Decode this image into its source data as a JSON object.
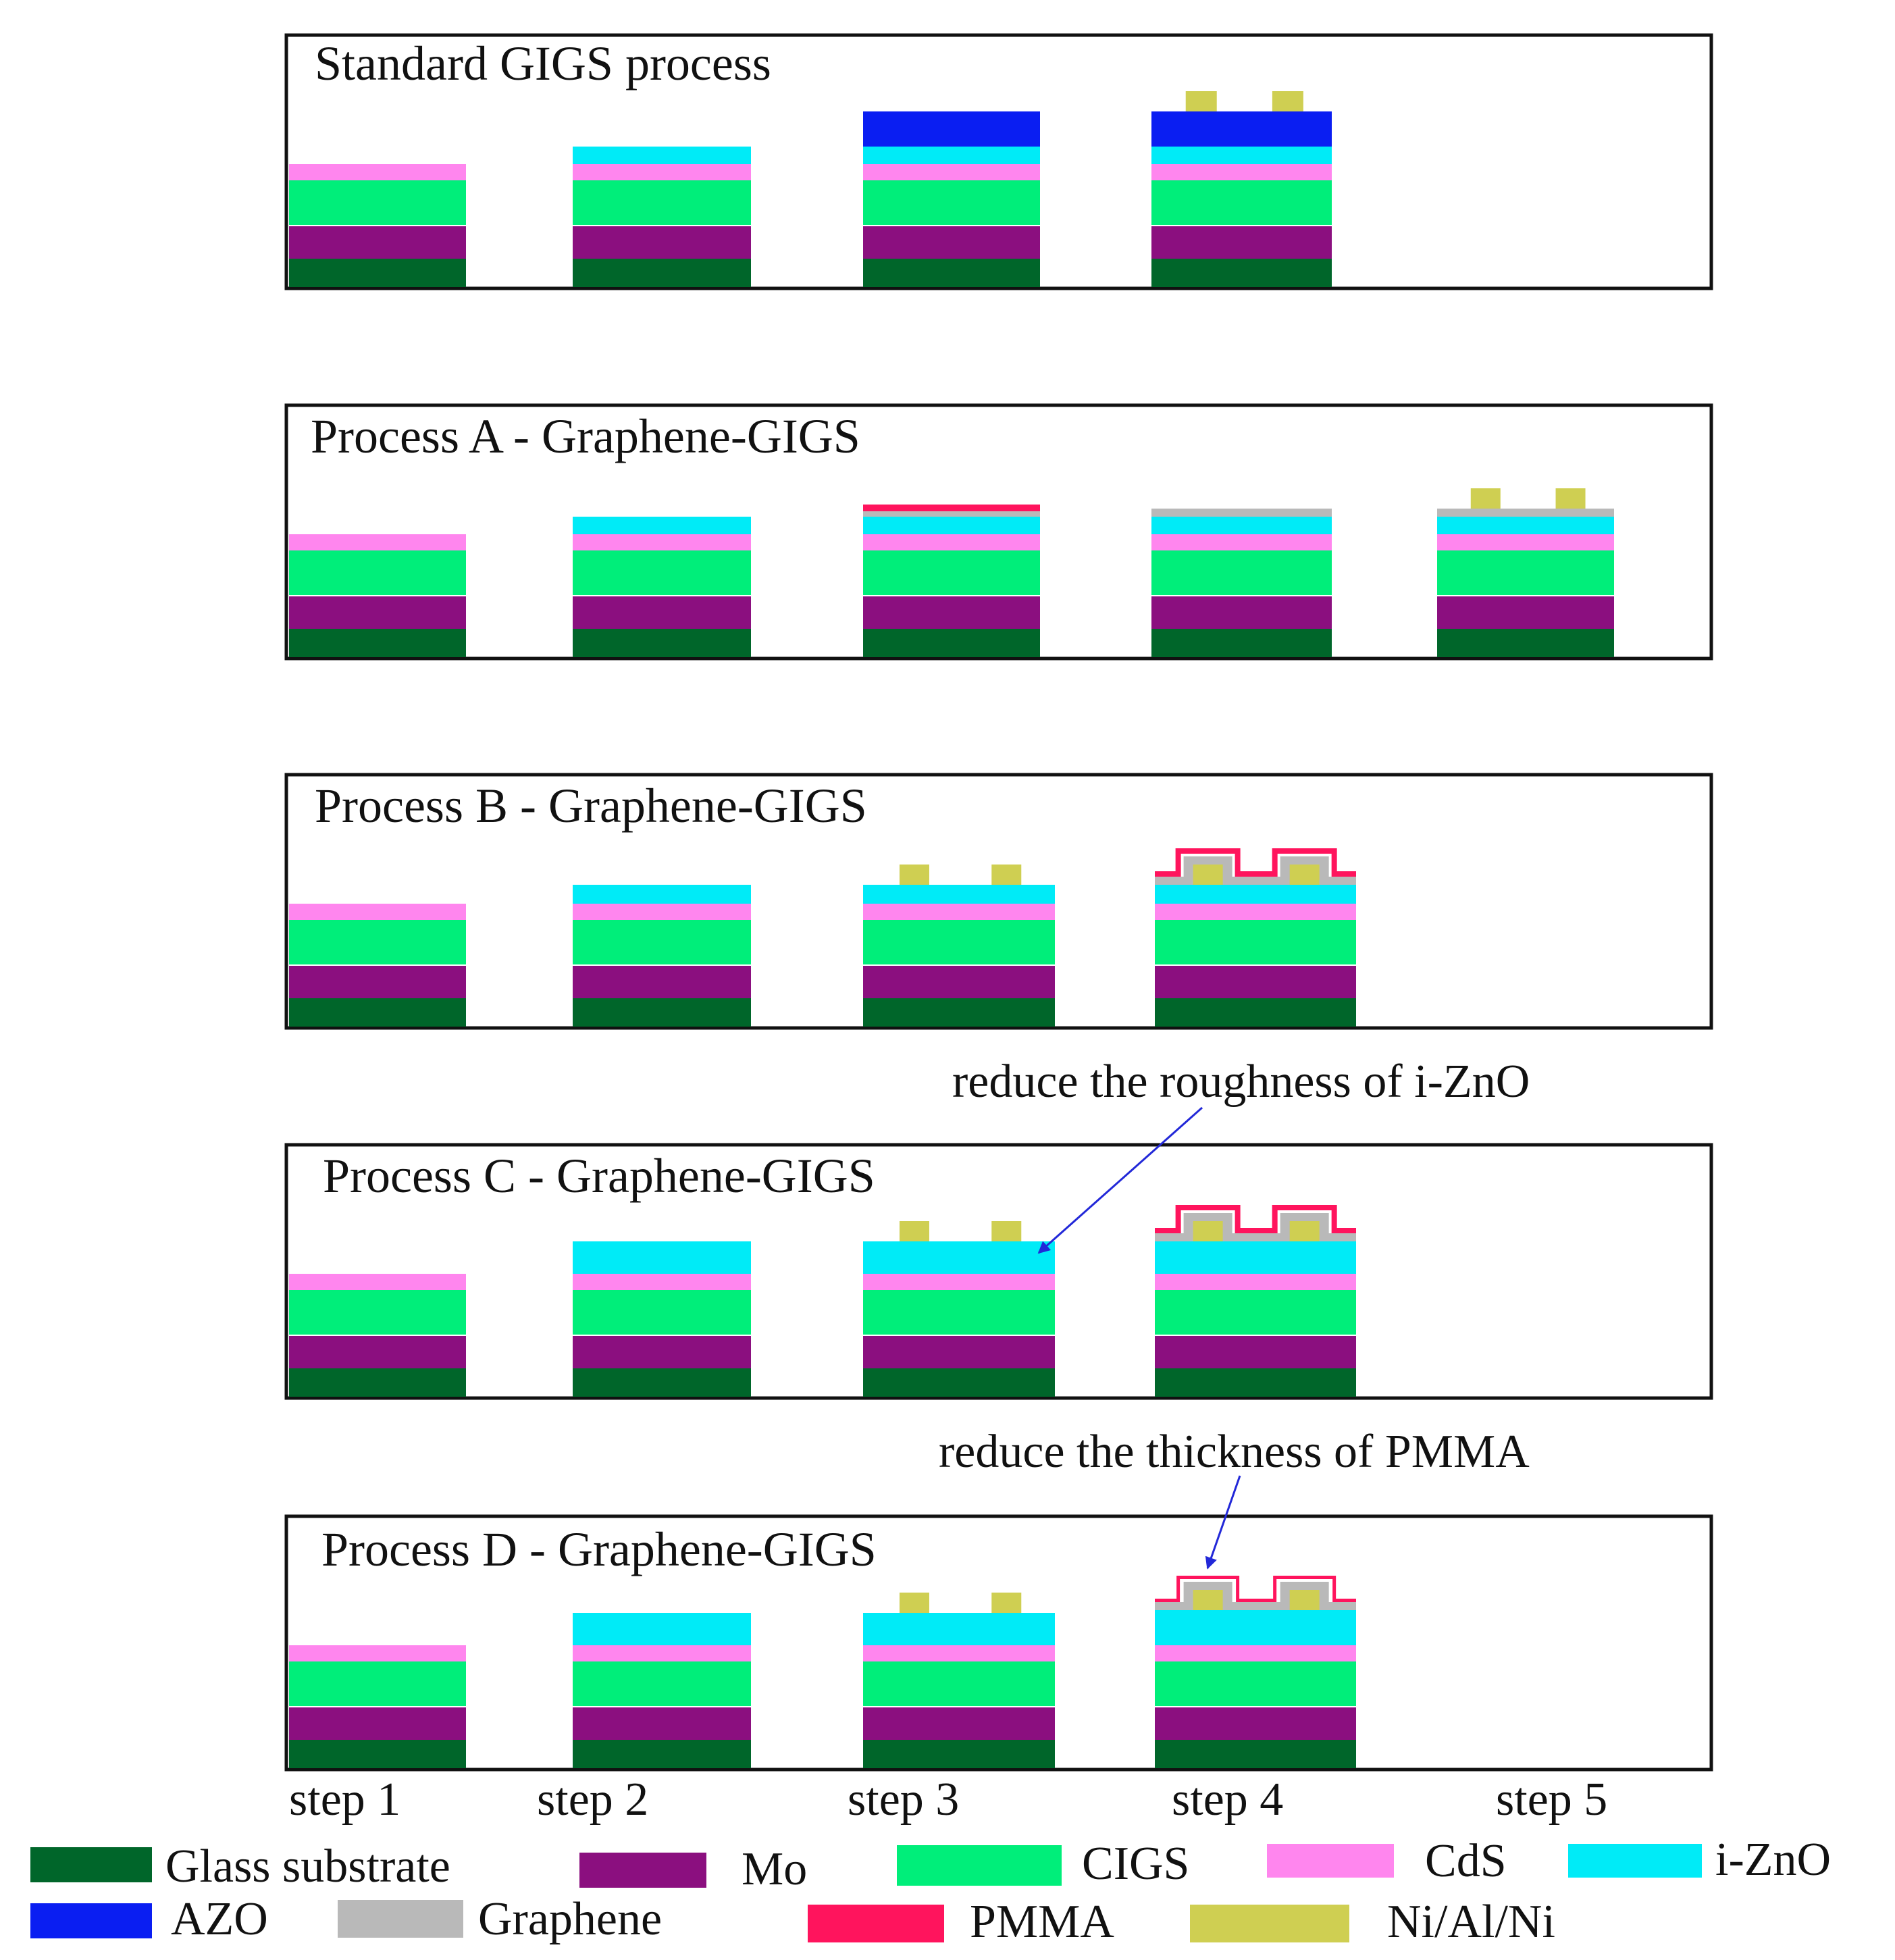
{
  "colors": {
    "glass": "#00662a",
    "mo": "#8b0f7f",
    "cigs": "#00ee7a",
    "cds": "#ff86ee",
    "izno": "#00ebf7",
    "azo": "#0a1ef2",
    "graphene": "#b9b9b9",
    "pmma": "#ff145d",
    "contact": "#cfcf52",
    "frame": "#111111",
    "arrow": "#2228d8"
  },
  "panels": [
    {
      "id": "standard",
      "title": "Standard GIGS process"
    },
    {
      "id": "a",
      "title": "Process A - Graphene-GIGS"
    },
    {
      "id": "b",
      "title": "Process B - Graphene-GIGS"
    },
    {
      "id": "c",
      "title": "Process C - Graphene-GIGS"
    },
    {
      "id": "d",
      "title": "Process D - Graphene-GIGS"
    }
  ],
  "annotations": {
    "roughness": "reduce the roughness of i-ZnO",
    "thickness": "reduce the thickness of PMMA"
  },
  "steps": [
    "step 1",
    "step 2",
    "step 3",
    "step 4",
    "step 5"
  ],
  "legend": [
    {
      "key": "glass",
      "label": "Glass substrate"
    },
    {
      "key": "mo",
      "label": "Mo"
    },
    {
      "key": "cigs",
      "label": "CIGS"
    },
    {
      "key": "cds",
      "label": "CdS"
    },
    {
      "key": "izno",
      "label": "i-ZnO"
    },
    {
      "key": "azo",
      "label": "AZO"
    },
    {
      "key": "graphene",
      "label": "Graphene"
    },
    {
      "key": "pmma",
      "label": "PMMA"
    },
    {
      "key": "contact",
      "label": "Ni/Al/Ni"
    }
  ]
}
